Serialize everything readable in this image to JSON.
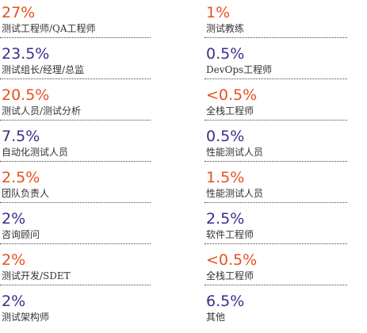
{
  "colors": {
    "orange": "#e8501e",
    "purple": "#3d2e8a",
    "label": "#333333"
  },
  "left": [
    {
      "value": "27%",
      "label": "测试工程师/QA工程师",
      "color": "orange"
    },
    {
      "value": "23.5%",
      "label": "测试组长/经理/总监",
      "color": "purple"
    },
    {
      "value": "20.5%",
      "label": "测试人员/测试分析",
      "color": "orange"
    },
    {
      "value": "7.5%",
      "label": "自动化测试人员",
      "color": "purple"
    },
    {
      "value": "2.5%",
      "label": "团队负责人",
      "color": "orange"
    },
    {
      "value": "2%",
      "label": "咨询顾问",
      "color": "purple"
    },
    {
      "value": "2%",
      "label": "测试开发/SDET",
      "color": "orange"
    },
    {
      "value": "2%",
      "label": "测试架构师",
      "color": "purple"
    }
  ],
  "right": [
    {
      "value": "1%",
      "label": "测试教练",
      "color": "orange"
    },
    {
      "value": "0.5%",
      "label": "DevOps工程师",
      "color": "purple"
    },
    {
      "value": "<0.5%",
      "label": "全栈工程师",
      "color": "orange"
    },
    {
      "value": "0.5%",
      "label": "性能测试人员",
      "color": "purple"
    },
    {
      "value": "1.5%",
      "label": "性能测试人员",
      "color": "orange"
    },
    {
      "value": "2.5%",
      "label": "软件工程师",
      "color": "purple"
    },
    {
      "value": "<0.5%",
      "label": "全栈工程师",
      "color": "orange"
    },
    {
      "value": "6.5%",
      "label": "其他",
      "color": "purple"
    }
  ]
}
